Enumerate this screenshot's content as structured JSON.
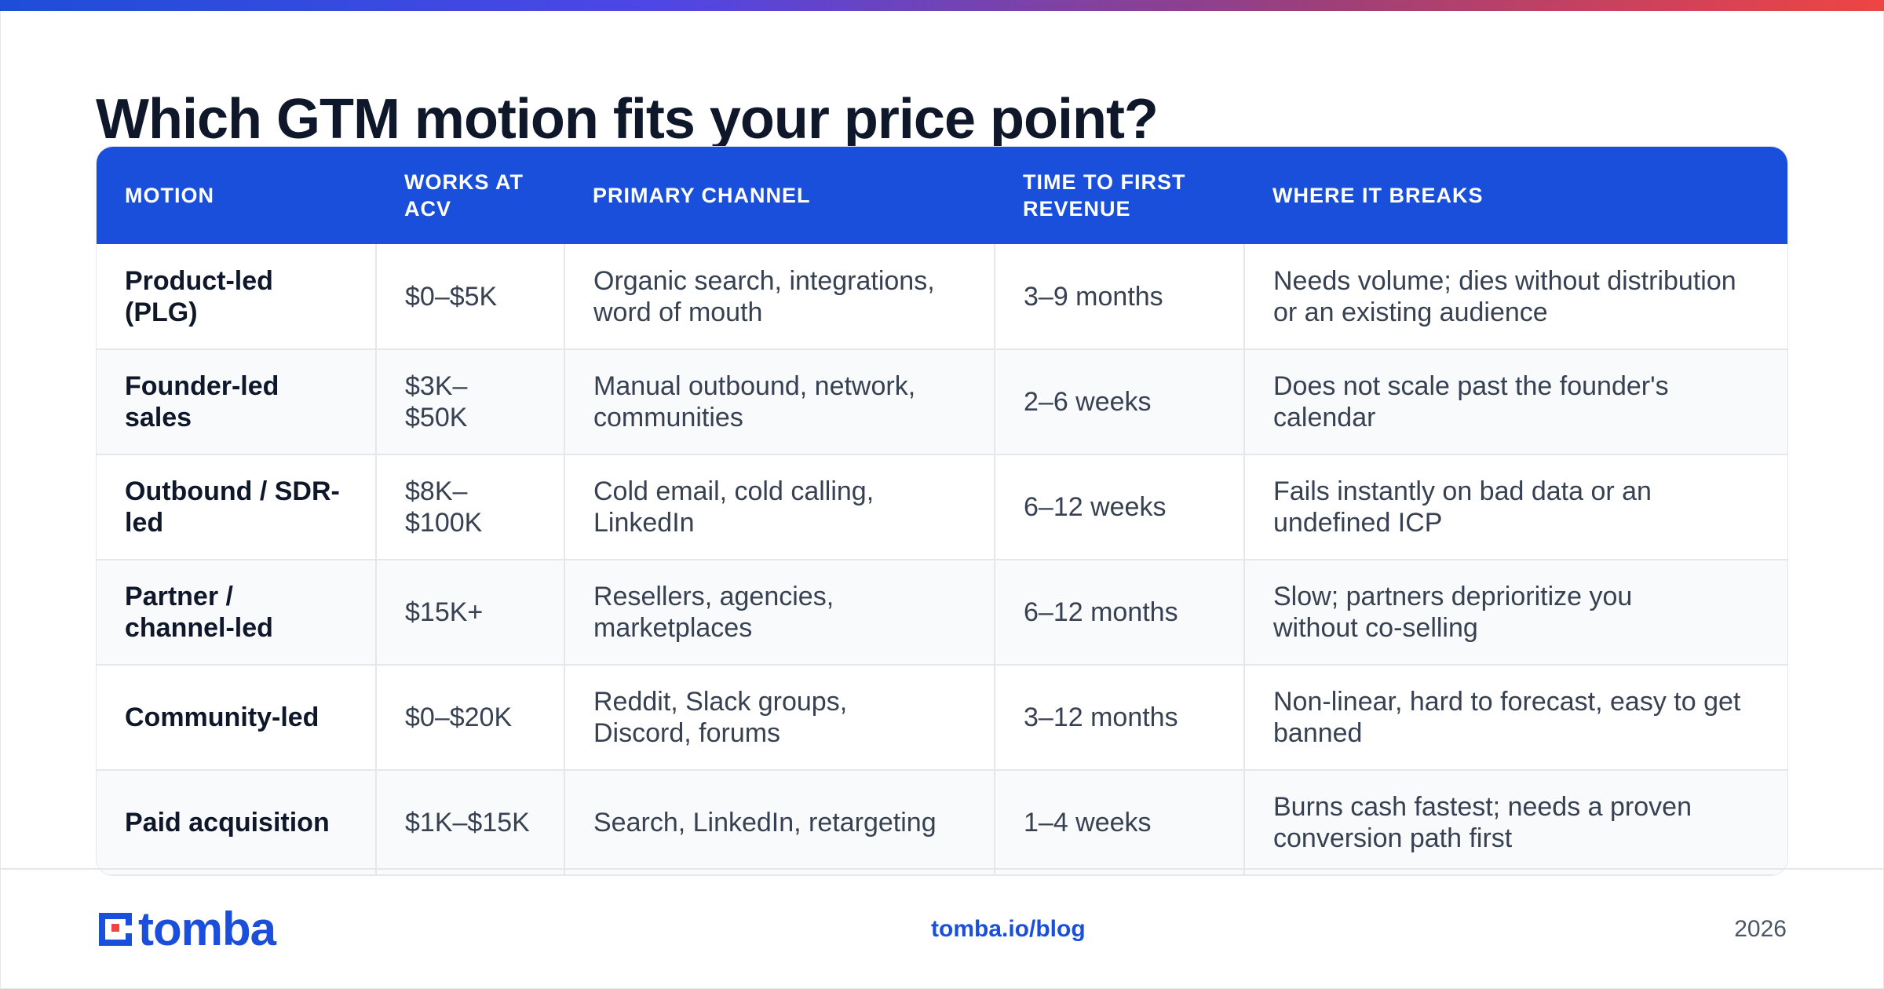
{
  "title": "Which GTM motion fits your price point?",
  "colors": {
    "accent": "#1a4fdb",
    "header_bg": "#1a4fdb",
    "logo_red": "#ef4444",
    "gradient": [
      "#1d4ed8",
      "#4f46e5",
      "#9d3f7a",
      "#ef4444"
    ]
  },
  "table": {
    "headers": {
      "motion": "MOTION",
      "acv": "WORKS AT ACV",
      "channel": "PRIMARY CHANNEL",
      "time": "TIME TO FIRST REVENUE",
      "breaks": "WHERE IT BREAKS"
    },
    "rows": [
      {
        "motion": "Product-led (PLG)",
        "acv": "$0–$5K",
        "channel": "Organic search, integrations, word of mouth",
        "time": "3–9 months",
        "breaks": "Needs volume; dies without distribution or an existing audience"
      },
      {
        "motion": "Founder-led sales",
        "acv": "$3K–$50K",
        "channel": "Manual outbound, network, communities",
        "time": "2–6 weeks",
        "breaks": "Does not scale past the founder's calendar"
      },
      {
        "motion": "Outbound / SDR-led",
        "acv": "$8K–$100K",
        "channel": "Cold email, cold calling, LinkedIn",
        "time": "6–12 weeks",
        "breaks": "Fails instantly on bad data or an undefined ICP"
      },
      {
        "motion": "Partner / channel-led",
        "acv": "$15K+",
        "channel": "Resellers, agencies, marketplaces",
        "time": "6–12 months",
        "breaks": "Slow; partners deprioritize you without co-selling"
      },
      {
        "motion": "Community-led",
        "acv": "$0–$20K",
        "channel": "Reddit, Slack groups, Discord, forums",
        "time": "3–12 months",
        "breaks": "Non-linear, hard to forecast, easy to get banned"
      },
      {
        "motion": "Paid acquisition",
        "acv": "$1K–$15K",
        "channel": "Search, LinkedIn, retargeting",
        "time": "1–4 weeks",
        "breaks": "Burns cash fastest; needs a proven conversion path first"
      }
    ]
  },
  "footer": {
    "logo_text": "tomba",
    "logo_icon": "tomba-logo-icon",
    "link": "tomba.io/blog",
    "year": "2026"
  }
}
